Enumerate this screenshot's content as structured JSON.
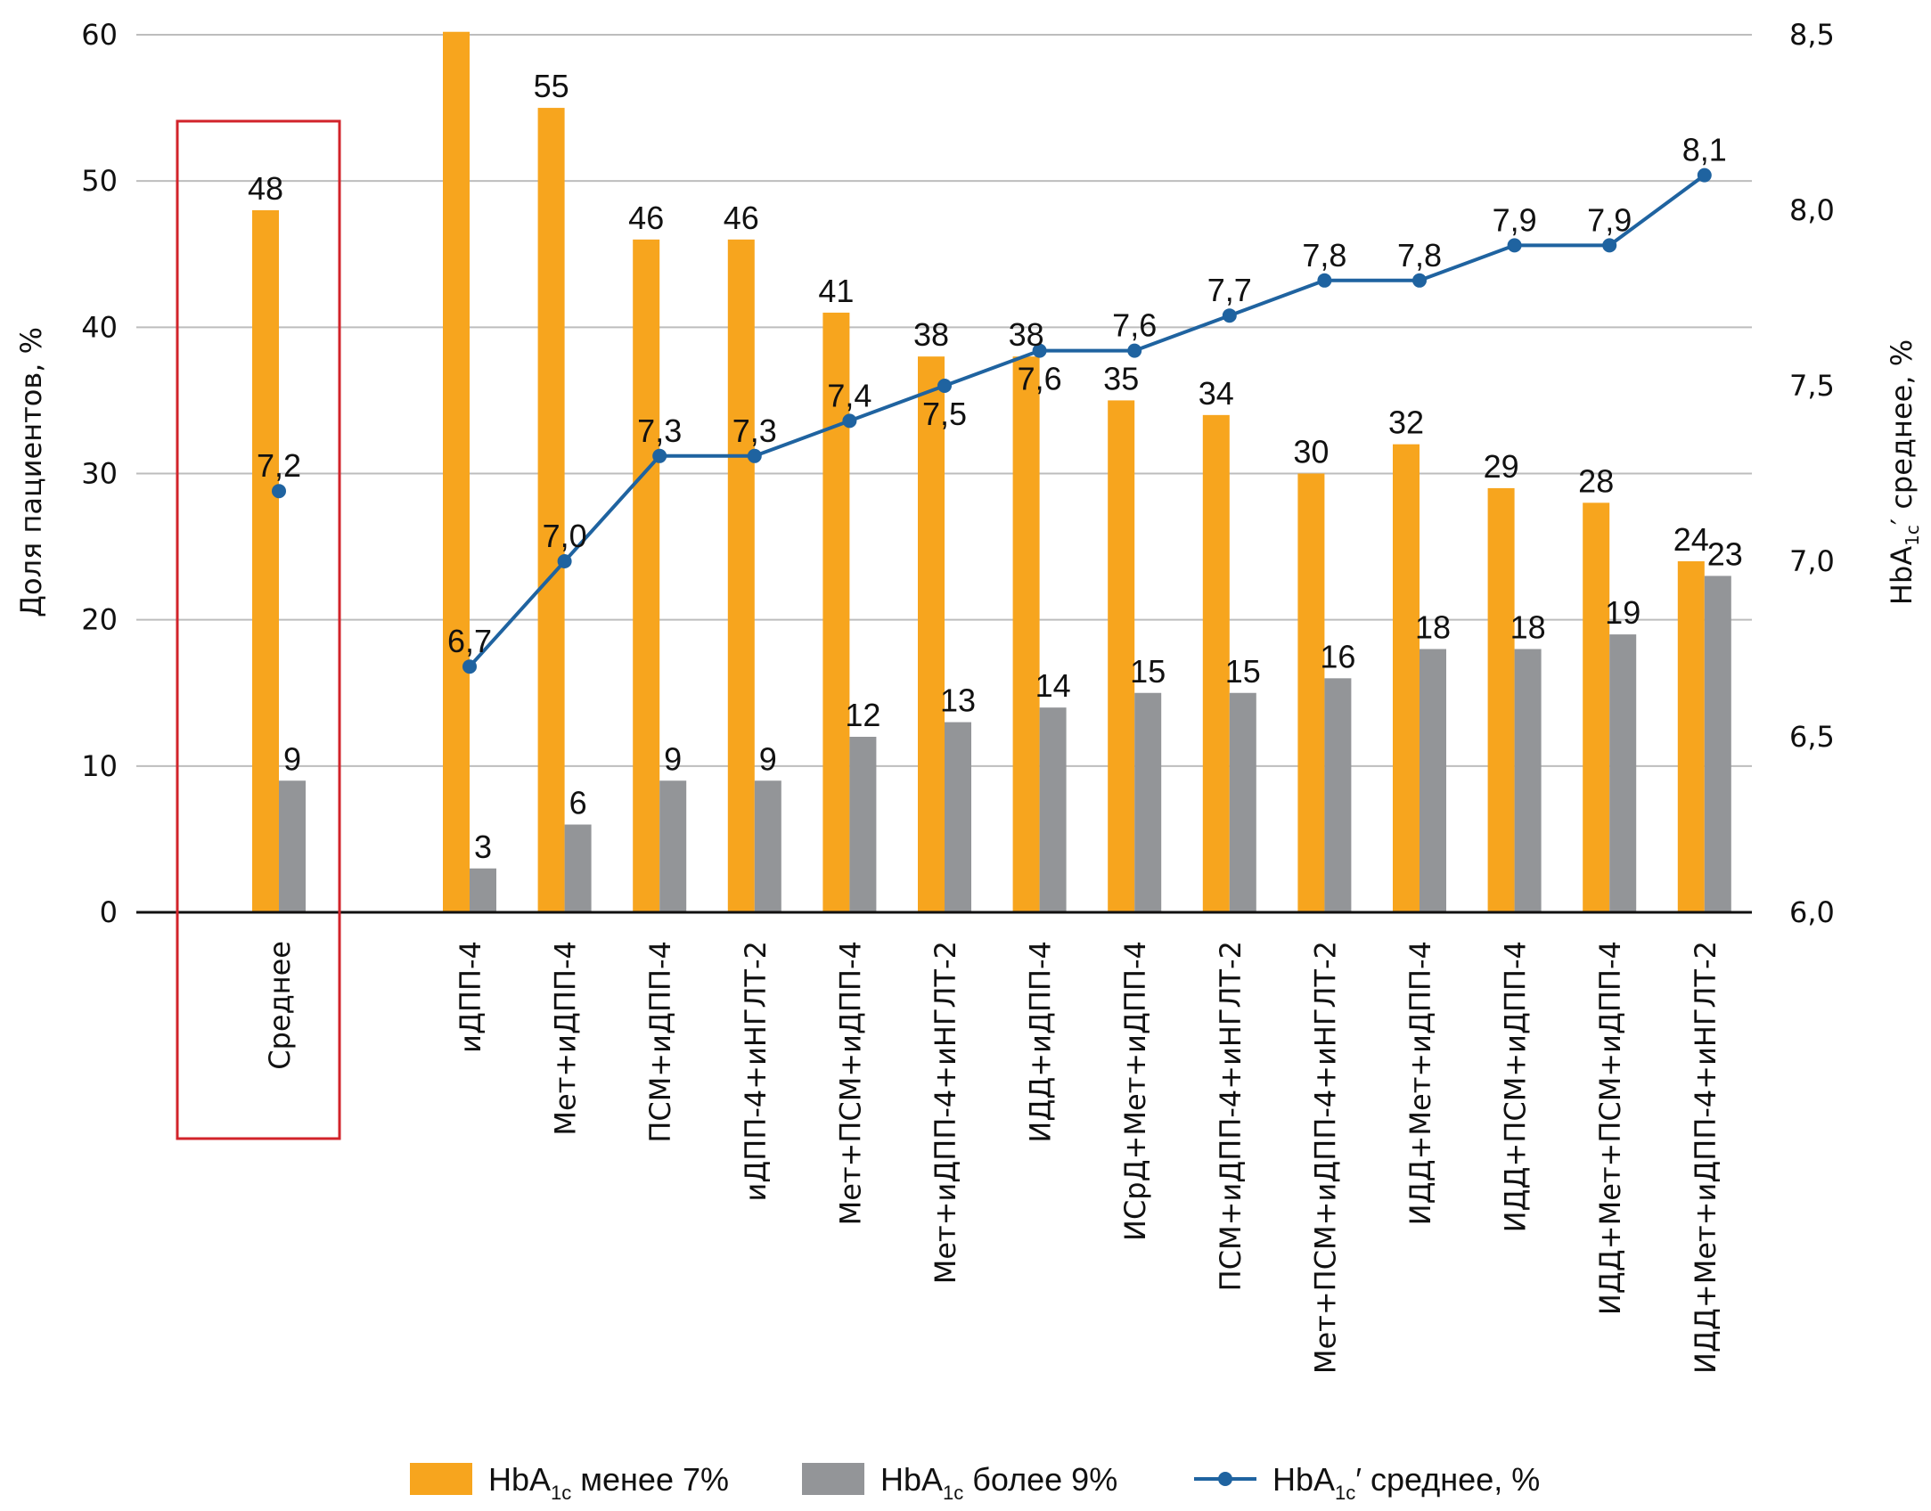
{
  "chart_data": {
    "type": "bar",
    "categories": [
      "Среднее",
      "иДПП-4",
      "Мет+иДПП-4",
      "ПСМ+иДПП-4",
      "иДПП-4+иНГЛТ-2",
      "Мет+ПСМ+иДПП-4",
      "Мет+иДПП-4+иНГЛТ-2",
      "ИДД+иДПП-4",
      "ИСрД+Мет+иДПП-4",
      "ПСМ+иДПП-4+иНГЛТ-2",
      "Мет+ПСМ+иДПП-4+иНГЛТ-2",
      "ИДД+Мет+иДПП-4",
      "ИДД+ПСМ+иДПП-4",
      "ИДД+Мет+ПСМ+иДПП-4",
      "ИДД+Мет+иДПП-4+иНГЛТ-2"
    ],
    "series": [
      {
        "name": "HbA1c менее 7%",
        "type": "bar",
        "axis": "left",
        "color": "#F7A51E",
        "values": [
          48,
          60.2,
          55,
          46,
          46,
          41,
          38,
          38,
          35,
          34,
          30,
          32,
          29,
          28,
          24
        ],
        "labels": [
          "48",
          "",
          "55",
          "46",
          "46",
          "41",
          "38",
          "38",
          "35",
          "34",
          "30",
          "32",
          "29",
          "28",
          "24"
        ]
      },
      {
        "name": "HbA1c более 9%",
        "type": "bar",
        "axis": "left",
        "color": "#939598",
        "values": [
          9,
          3,
          6,
          9,
          9,
          12,
          13,
          14,
          15,
          15,
          16,
          18,
          18,
          19,
          23
        ],
        "labels": [
          "9",
          "3",
          "6",
          "9",
          "9",
          "12",
          "13",
          "14",
          "15",
          "15",
          "16",
          "18",
          "18",
          "19",
          "23"
        ]
      },
      {
        "name": "HbA1c, среднее, %",
        "type": "line",
        "axis": "right",
        "color": "#1F63A0",
        "values": [
          7.2,
          6.7,
          7.0,
          7.3,
          7.3,
          7.4,
          7.5,
          7.6,
          7.6,
          7.7,
          7.8,
          7.8,
          7.9,
          7.9,
          8.1
        ],
        "labels": [
          "7,2",
          "6,7",
          "7,0",
          "7,3",
          "7,3",
          "7,4",
          "7,5",
          "7,6",
          "7,6",
          "7,7",
          "7,8",
          "7,8",
          "7,9",
          "7,9",
          "8,1"
        ],
        "label_position": [
          "above",
          "above",
          "above",
          "above",
          "above",
          "above",
          "below",
          "below",
          "above",
          "above",
          "above",
          "above",
          "above",
          "above",
          "above"
        ]
      }
    ],
    "line_connects_from_index": 1,
    "highlighted_category": "Среднее",
    "highlight_color": "#D2232A",
    "ylabel": "Доля пациентов, %",
    "ylim": [
      0,
      60
    ],
    "yticks": [
      "0",
      "10",
      "20",
      "30",
      "40",
      "50",
      "60"
    ],
    "y2label_main": "HbA",
    "y2label_sub": "1c",
    "y2label_rest": "′ среднее, %",
    "y2lim": [
      6.0,
      8.5
    ],
    "y2ticks": [
      "6,0",
      "6,5",
      "7,0",
      "7,5",
      "8,0",
      "8,5"
    ],
    "grid": true,
    "legend_position": "bottom",
    "legend": [
      {
        "main": "HbA",
        "sub": "1c",
        "rest": " менее 7%",
        "kind": "bar",
        "color": "#F7A51E"
      },
      {
        "main": "HbA",
        "sub": "1c",
        "rest": " более 9%",
        "kind": "bar",
        "color": "#939598"
      },
      {
        "main": "HbA",
        "sub": "1c",
        "rest": "′ среднее, %",
        "kind": "line",
        "color": "#1F63A0"
      }
    ]
  }
}
